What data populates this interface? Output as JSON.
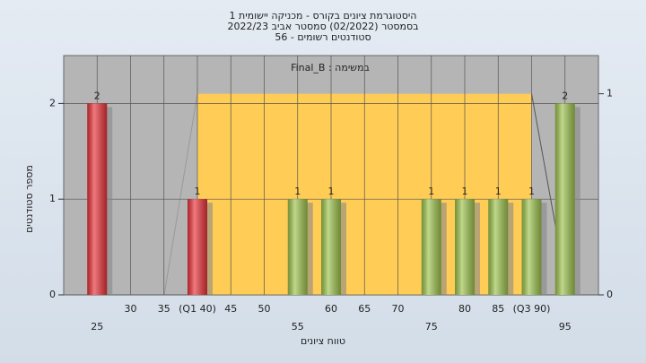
{
  "chart_data": {
    "type": "bar",
    "title": [
      "היסטוגרמת ציונים בקורס - מכניקה יישומית 1",
      "בסמסטר  (02/2022)  סמסטר אביב 2022/23",
      "סטודנטים רשומים - 56"
    ],
    "subtitle": "במשימה : Final_B",
    "x_label": "טווח ציונים",
    "y_label": "מספר סטודנטים",
    "x": [
      25,
      40,
      55,
      60,
      75,
      80,
      85,
      90,
      95
    ],
    "values": [
      2,
      1,
      1,
      1,
      1,
      1,
      1,
      1,
      2
    ],
    "colors": [
      "#e8333a",
      "#e8333a",
      "#9dc34e",
      "#9dc34e",
      "#9dc34e",
      "#9dc34e",
      "#9dc34e",
      "#9dc34e",
      "#9dc34e"
    ],
    "xlim": [
      20,
      100
    ],
    "xticks": [
      25,
      30,
      35,
      {
        "value": 40,
        "label": "(Q1 40)"
      },
      45,
      50,
      55,
      60,
      65,
      70,
      75,
      80,
      85,
      {
        "value": 90,
        "label": "(Q3 90)"
      },
      95
    ],
    "ylim": [
      0,
      2.5
    ],
    "yticks": [
      0,
      1,
      2
    ],
    "y2lim": [
      0,
      1.19
    ],
    "y2ticks": [
      0,
      1
    ],
    "grid": true
  }
}
